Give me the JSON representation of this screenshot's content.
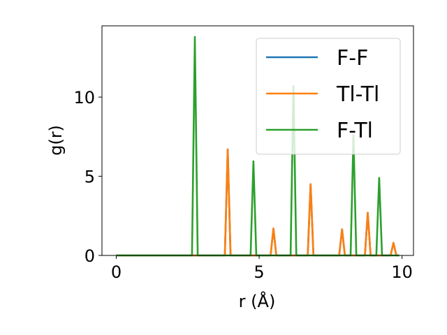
{
  "chart_data": {
    "type": "line",
    "title": "",
    "xlabel": "r (Å)",
    "ylabel": "g(r)",
    "xlim": [
      -0.5,
      10.4
    ],
    "ylim": [
      0,
      14.5
    ],
    "xticks": [
      0,
      5,
      10
    ],
    "yticks": [
      0,
      5,
      10
    ],
    "grid": false,
    "legend_position": "upper right",
    "series": [
      {
        "name": "F-F",
        "color": "#1f77b4",
        "x": [
          0,
          3.8,
          3.9,
          4.0,
          5.4,
          5.5,
          5.6,
          6.7,
          6.8,
          6.9,
          7.8,
          7.9,
          8.0,
          8.7,
          8.8,
          8.9,
          9.6,
          9.7,
          9.8,
          9.9
        ],
        "y": [
          0,
          0,
          6.7,
          0,
          0,
          1.7,
          0,
          0,
          4.5,
          0,
          0,
          1.65,
          0,
          0,
          2.7,
          0,
          0,
          0.8,
          0,
          0
        ]
      },
      {
        "name": "Tl-Tl",
        "color": "#ff7f0e",
        "x": [
          0,
          3.8,
          3.9,
          4.0,
          5.4,
          5.5,
          5.6,
          6.7,
          6.8,
          6.9,
          7.8,
          7.9,
          8.0,
          8.7,
          8.8,
          8.9,
          9.6,
          9.7,
          9.8,
          9.9
        ],
        "y": [
          0,
          0,
          6.7,
          0,
          0,
          1.7,
          0,
          0,
          4.5,
          0,
          0,
          1.65,
          0,
          0,
          2.7,
          0,
          0,
          0.8,
          0,
          0
        ]
      },
      {
        "name": "F-Tl",
        "color": "#2ca02c",
        "x": [
          0,
          2.65,
          2.75,
          2.85,
          4.7,
          4.8,
          4.9,
          6.1,
          6.2,
          6.3,
          8.2,
          8.3,
          8.4,
          9.1,
          9.2,
          9.3,
          9.9
        ],
        "y": [
          0,
          0,
          13.8,
          0,
          0,
          5.95,
          0,
          0,
          10.7,
          0,
          0,
          7.6,
          0,
          0,
          4.9,
          0,
          0
        ]
      }
    ]
  }
}
